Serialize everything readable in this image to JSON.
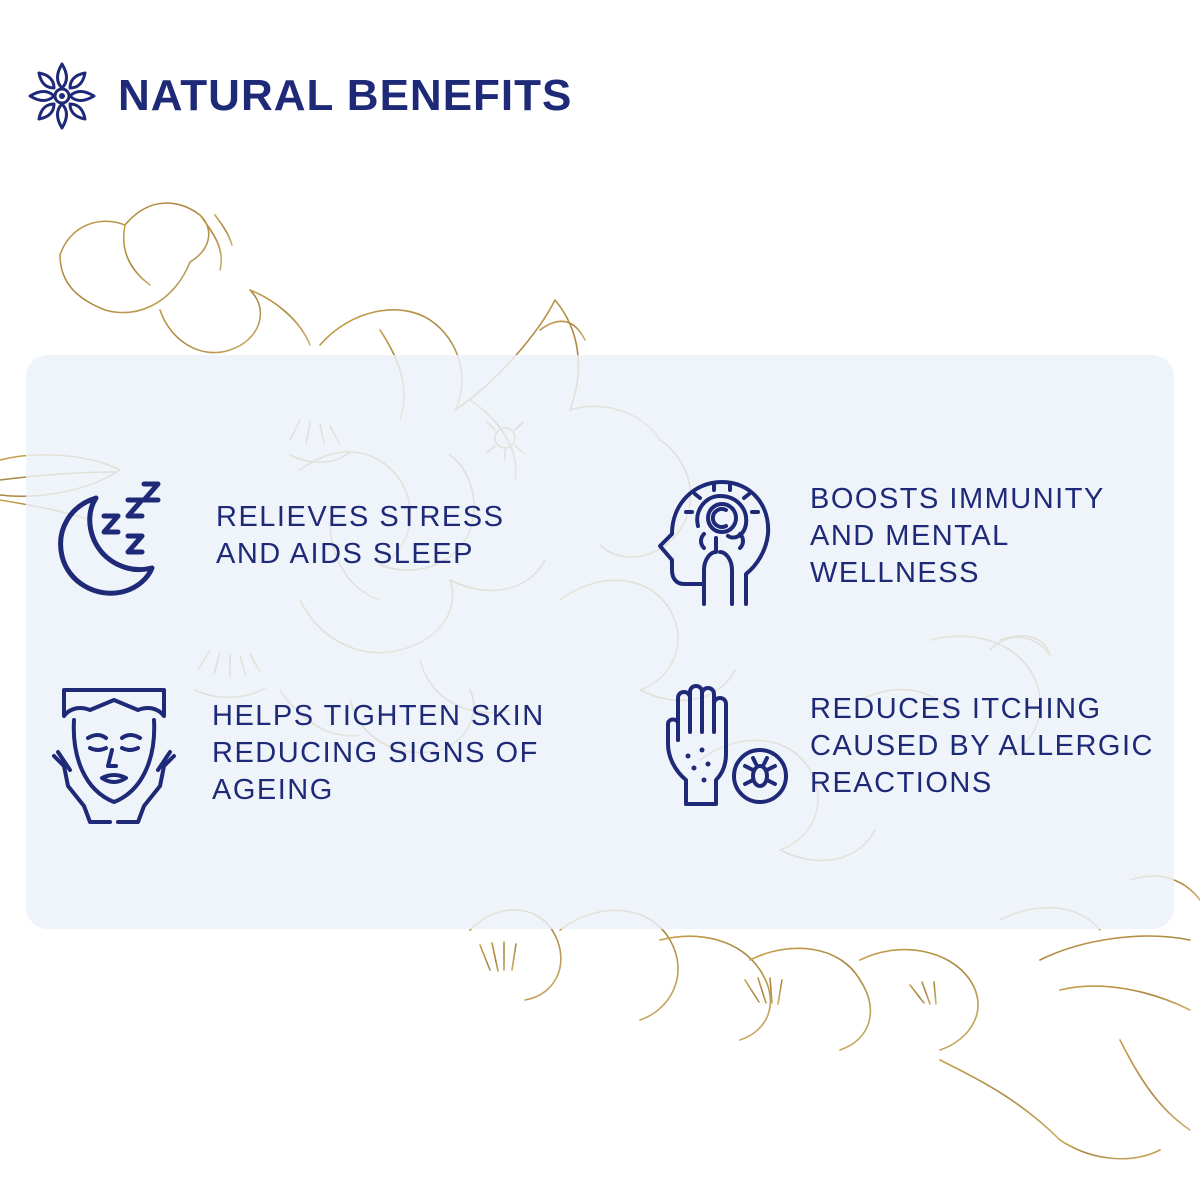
{
  "header": {
    "title": "NATURAL BENEFITS",
    "logo_icon": "lotus-mandala-icon"
  },
  "colors": {
    "brand_navy": "#1e2a78",
    "panel_bg": "#eef2f9",
    "floral_gold": "#b08a3a"
  },
  "benefits": [
    {
      "icon": "moon-sleep-icon",
      "lines": [
        "RELIEVES STRESS",
        "AND AIDS SLEEP"
      ]
    },
    {
      "icon": "head-brain-icon",
      "lines": [
        "BOOSTS IMMUNITY",
        "AND MENTAL",
        "WELLNESS"
      ]
    },
    {
      "icon": "face-skin-icon",
      "lines": [
        "HELPS TIGHTEN SKIN",
        "REDUCING SIGNS OF",
        "AGEING"
      ]
    },
    {
      "icon": "hand-allergy-icon",
      "lines": [
        "REDUCES ITCHING",
        "CAUSED BY ALLERGIC",
        "REACTIONS"
      ]
    }
  ]
}
